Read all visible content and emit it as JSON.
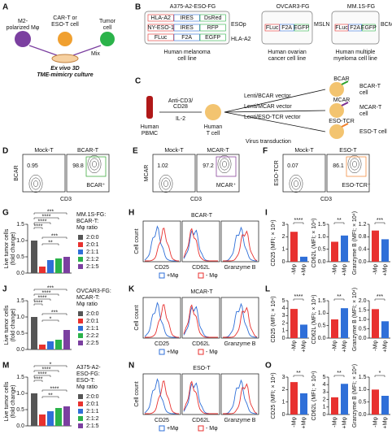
{
  "panel_letters": [
    "A",
    "B",
    "C",
    "D",
    "E",
    "F",
    "G",
    "H",
    "I",
    "J",
    "K",
    "L",
    "M",
    "N",
    "O"
  ],
  "a": {
    "macrophage": [
      "M2-",
      "polarized Mφ"
    ],
    "t_cell": [
      "CAR-T or",
      "ESO-T cell"
    ],
    "tumor": [
      "Tumor",
      "cell"
    ],
    "mix": "Mix",
    "caption": [
      "Ex vivo 3D",
      "TME-mimicry culture"
    ]
  },
  "b": {
    "lines": [
      {
        "name": "A375-A2-ESO-FG",
        "constructs": [
          [
            "HLA-A2",
            "IRES",
            "DsRed"
          ],
          [
            "NY-ESO-1",
            "IRES",
            "RFP"
          ],
          [
            "FLuc",
            "F2A",
            "EGFP"
          ]
        ],
        "antigens": [
          "ESOp",
          "HLA-A2"
        ],
        "caption": [
          "Human melanoma",
          "cell line"
        ]
      },
      {
        "name": "OVCAR3-FG",
        "constructs": [
          [
            "FLuc",
            "F2A",
            "EGFP"
          ]
        ],
        "antigens": [
          "MSLN"
        ],
        "caption": [
          "Human ovarian",
          "cancer cell line"
        ]
      },
      {
        "name": "MM.1S-FG",
        "constructs": [
          [
            "FLuc",
            "F2A",
            "EGFP"
          ]
        ],
        "antigens": [
          "BCMA"
        ],
        "caption": [
          "Human multiple",
          "myeloma cell line"
        ]
      }
    ]
  },
  "c": {
    "pbmc": [
      "Human",
      "PBMC"
    ],
    "stim": [
      "Anti-CD3/",
      "CD28"
    ],
    "il2": "IL-2",
    "tcell": [
      "Human",
      "T cell"
    ],
    "transduction": "Virus transduction",
    "arms": [
      {
        "vector": "Lenti/BCAR vector",
        "receptor": "BCAR",
        "cell": [
          "BCAR-T",
          "cell"
        ],
        "color": "#2ca02c"
      },
      {
        "vector": "Lenti/MCAR vector",
        "receptor": "MCAR",
        "cell": [
          "MCAR-T",
          "cell"
        ],
        "color": "#7b2d8e"
      },
      {
        "vector": "Lenti/ESO-TCR vector",
        "receptor": "ESO-TCR",
        "cell": [
          "ESO-T cell"
        ],
        "color": "#f07f2a"
      }
    ]
  },
  "flow": [
    {
      "ylabel": "BCAR",
      "xlabel": "CD3",
      "mock": "Mock-T",
      "mock_pct": 0.95,
      "name": "BCAR-T",
      "pct": 98.8,
      "gate": "BCAR⁺",
      "color": "#2ca02c"
    },
    {
      "ylabel": "MCAR",
      "xlabel": "CD3",
      "mock": "Mock-T",
      "mock_pct": 1.02,
      "name": "MCAR-T",
      "pct": 97.2,
      "gate": "MCAR⁺",
      "color": "#7b2d8e"
    },
    {
      "ylabel": "ESO-TCR",
      "xlabel": "CD3",
      "mock": "Mock-T",
      "mock_pct": 0.07,
      "name": "ESO-T",
      "pct": 86.1,
      "gate": "ESO-TCR⁺",
      "color": "#f07f2a"
    }
  ],
  "ratio_charts": [
    {
      "ylabel": [
        "Live tumor cells",
        "(fold change)"
      ],
      "legend_title": [
        "MM.1S-FG:",
        "BCAR-T:",
        "Mφ ratio"
      ],
      "categories": [
        "2:0:0",
        "2:0:1",
        "2:1:1",
        "2:1:2",
        "2:1:5"
      ],
      "values": [
        1.0,
        0.2,
        0.4,
        0.45,
        0.5
      ],
      "colors": [
        "#555555",
        "#e8312f",
        "#2f6fd8",
        "#2bb34a",
        "#7b3fa0"
      ],
      "ylim": [
        0,
        1.5
      ],
      "yticks": [
        {
          "value": 0,
          "label": "0.0"
        },
        0.5,
        {
          "value": 1,
          "label": "1.0"
        },
        1.5
      ],
      "stars": [
        "***",
        "****",
        "****",
        "****",
        "***",
        "**"
      ]
    },
    {
      "ylabel": [
        "Live tumor cells",
        "(fold change)"
      ],
      "legend_title": [
        "OVCAR3-FG:",
        "MCAR-T:",
        "Mφ ratio"
      ],
      "categories": [
        "2:0:0",
        "2:0:1",
        "2:1:1",
        "2:2:2",
        "2:2:5"
      ],
      "values": [
        1.0,
        0.15,
        0.25,
        0.3,
        0.6
      ],
      "colors": [
        "#555555",
        "#e8312f",
        "#2f6fd8",
        "#2bb34a",
        "#7b3fa0"
      ],
      "ylim": [
        0,
        1.5
      ],
      "yticks": [
        {
          "value": 0,
          "label": "0.0"
        },
        0.5,
        {
          "value": 1,
          "label": "1.0"
        },
        1.5
      ],
      "stars": [
        "***",
        "****",
        "****",
        "****",
        "***",
        "*"
      ]
    },
    {
      "ylabel": [
        "Live tumor cells",
        "(fold change)"
      ],
      "legend_title": [
        "A375-A2-",
        "ESO-FG:",
        "ESO-T:",
        "Mφ ratio"
      ],
      "categories": [
        "2:0:0",
        "2:0:1",
        "2:1:1",
        "2:1:2",
        "2:1:5"
      ],
      "values": [
        1.0,
        0.35,
        0.45,
        0.55,
        0.6
      ],
      "colors": [
        "#555555",
        "#e8312f",
        "#2f6fd8",
        "#2bb34a",
        "#7b3fa0"
      ],
      "ylim": [
        0,
        1.5
      ],
      "yticks": [
        {
          "value": 0,
          "label": "0.0"
        },
        0.5,
        {
          "value": 1,
          "label": "1.0"
        },
        1.5
      ],
      "stars": [
        "*",
        "****",
        "****",
        "****",
        "****",
        "**"
      ]
    }
  ],
  "histograms": [
    {
      "title": "BCAR-T",
      "ylabel": "Cell count",
      "xlabels": [
        "CD25",
        "CD62L",
        "Granzyme B"
      ],
      "legend": [
        {
          "name": "+Mφ",
          "color": "#2f6fd8"
        },
        {
          "name": "- Mφ",
          "color": "#e8312f"
        }
      ]
    },
    {
      "title": "MCAR-T",
      "ylabel": "Cell count",
      "xlabels": [
        "CD25",
        "CD62L",
        "Granzyme B"
      ],
      "legend": [
        {
          "name": "+Mφ",
          "color": "#2f6fd8"
        },
        {
          "name": "- Mφ",
          "color": "#e8312f"
        }
      ]
    },
    {
      "title": "ESO-T",
      "ylabel": "Cell count",
      "xlabels": [
        "CD25",
        "CD62L",
        "Granzyme B"
      ],
      "legend": [
        {
          "name": "+Mφ",
          "color": "#2f6fd8"
        },
        {
          "name": "- Mφ",
          "color": "#e8312f"
        }
      ]
    }
  ],
  "mfi_colors": [
    "#e8312f",
    "#2f6fd8"
  ],
  "mfi_charts": [
    {
      "subcharts": [
        {
          "ylabel": "CD25 (MFI; × 10⁴)",
          "categories": [
            "-Mφ",
            "+Mφ"
          ],
          "values": [
            2.4,
            0.4
          ],
          "ylim": [
            0,
            3
          ],
          "yticks": [
            0,
            1,
            2,
            3
          ],
          "star": "****"
        },
        {
          "ylabel": "CD62L (MFI; × 10⁴)",
          "categories": [
            "-Mφ",
            "+Mφ"
          ],
          "values": [
            0.8,
            1.05
          ],
          "ylim": [
            0,
            1.5
          ],
          "yticks": [
            {
              "value": 0,
              "label": "0.0"
            },
            0.5,
            {
              "value": 1,
              "label": "1.0"
            },
            1.5
          ],
          "star": "**"
        },
        {
          "ylabel": "Granzyme B (MFI; × 10⁴)",
          "categories": [
            "-Mφ",
            "+Mφ"
          ],
          "values": [
            1.0,
            0.72
          ],
          "ylim": [
            0,
            1.2
          ],
          "yticks": [
            {
              "value": 0,
              "label": "0.0"
            },
            0.4,
            0.8,
            1.2
          ],
          "star": "***"
        }
      ]
    },
    {
      "subcharts": [
        {
          "ylabel": "CD25 (MFI; × 10⁴)",
          "categories": [
            "-Mφ",
            "+Mφ"
          ],
          "values": [
            3.9,
            1.8
          ],
          "ylim": [
            0,
            5
          ],
          "yticks": [
            0,
            1,
            2,
            3,
            4,
            5
          ],
          "star": "****"
        },
        {
          "ylabel": "CD62L (MFI; × 10⁴)",
          "categories": [
            "-Mφ",
            "+Mφ"
          ],
          "values": [
            0.75,
            1.2
          ],
          "ylim": [
            0,
            1.5
          ],
          "yticks": [
            {
              "value": 0,
              "label": "0.0"
            },
            0.5,
            {
              "value": 1,
              "label": "1.0"
            },
            1.5
          ],
          "star": "**"
        },
        {
          "ylabel": "Granzyme B (MFI; × 10⁴)",
          "categories": [
            "-Mφ",
            "+Mφ"
          ],
          "values": [
            1.55,
            0.9
          ],
          "ylim": [
            0,
            2
          ],
          "yticks": [
            {
              "value": 0,
              "label": "0.0"
            },
            0.5,
            {
              "value": 1,
              "label": "1.0"
            },
            1.5,
            {
              "value": 2,
              "label": "2.0"
            }
          ],
          "star": "***"
        }
      ]
    },
    {
      "subcharts": [
        {
          "ylabel": "CD25 (MFI; × 10⁴)",
          "categories": [
            "-Mφ",
            "+Mφ"
          ],
          "values": [
            2.6,
            1.7
          ],
          "ylim": [
            0,
            3
          ],
          "yticks": [
            0,
            1,
            2,
            3
          ],
          "star": "**"
        },
        {
          "ylabel": "CD62L (MFI; × 10⁴)",
          "categories": [
            "-Mφ",
            "+Mφ"
          ],
          "values": [
            2.3,
            4.1
          ],
          "ylim": [
            0,
            5
          ],
          "yticks": [
            0,
            1,
            2,
            3,
            4,
            5
          ],
          "star": "**"
        },
        {
          "ylabel": "Granzyme B (MFI; × 10⁴)",
          "categories": [
            "-Mφ",
            "+Mφ"
          ],
          "values": [
            1.0,
            0.75
          ],
          "ylim": [
            0,
            1.5
          ],
          "yticks": [
            {
              "value": 0,
              "label": "0.0"
            },
            0.5,
            {
              "value": 1,
              "label": "1.0"
            },
            1.5
          ],
          "star": "*"
        }
      ]
    }
  ]
}
